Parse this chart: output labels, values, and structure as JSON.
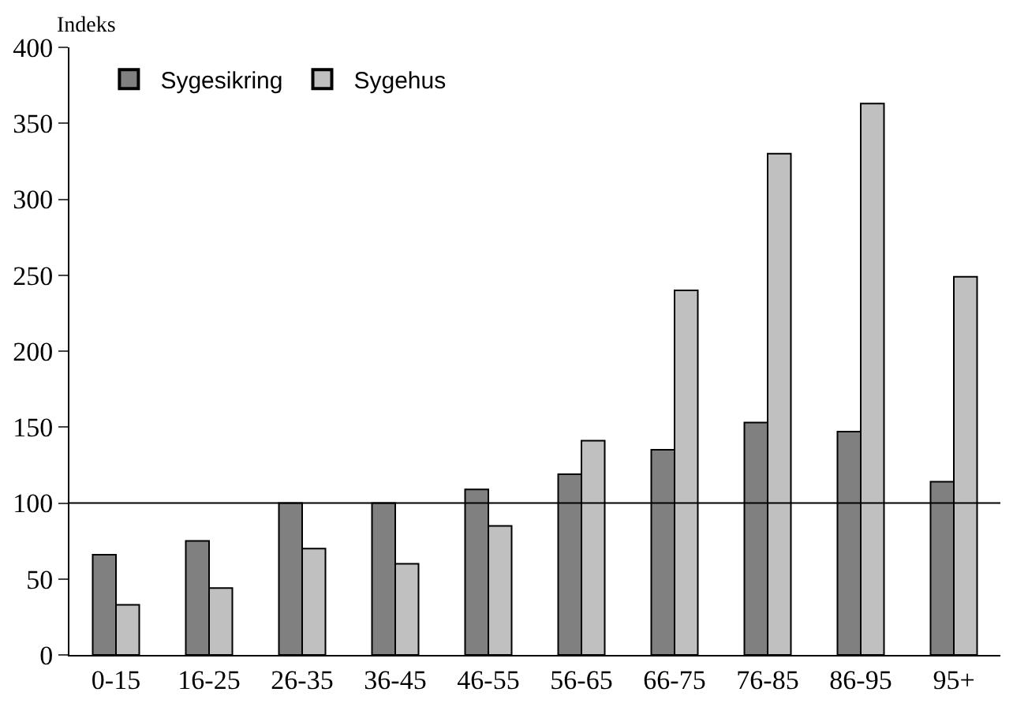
{
  "chart_data": {
    "type": "bar",
    "ylabel": "Indeks",
    "categories": [
      "0-15",
      "16-25",
      "26-35",
      "36-45",
      "46-55",
      "56-65",
      "66-75",
      "76-85",
      "86-95",
      "95+"
    ],
    "series": [
      {
        "name": "Sygesikring",
        "color": "#808080",
        "values": [
          66,
          75,
          100,
          100,
          109,
          119,
          135,
          153,
          147,
          114
        ]
      },
      {
        "name": "Sygehus",
        "color": "#c0c0c0",
        "values": [
          33,
          44,
          70,
          60,
          85,
          141,
          240,
          330,
          363,
          249
        ]
      }
    ],
    "ylim": [
      0,
      400
    ],
    "yticks": [
      0,
      50,
      100,
      150,
      200,
      250,
      300,
      350,
      400
    ],
    "ref_lines": [
      {
        "axis": "y",
        "value": 100,
        "color": "#000000"
      }
    ],
    "legend": "top left"
  }
}
